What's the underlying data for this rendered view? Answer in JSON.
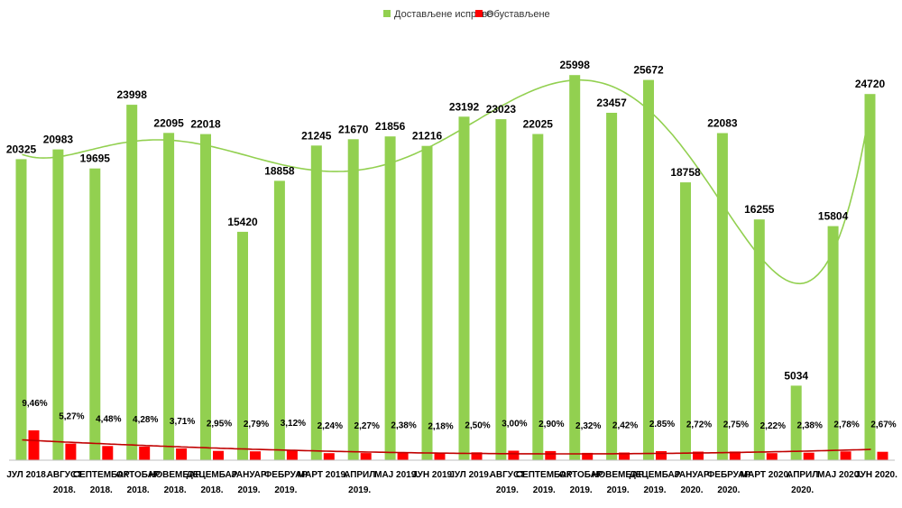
{
  "colors": {
    "delivered": "#92D050",
    "suspended": "#FF0000",
    "delivered_trend": "#92D050",
    "suspended_trend": "#C00000",
    "axis": "#BFBFBF"
  },
  "chart_data": {
    "type": "bar",
    "title": "",
    "xlabel": "",
    "ylabel": "",
    "legend_position": "top-center",
    "grid": false,
    "categories": [
      [
        "ЈУЛ 2018."
      ],
      [
        "АВГУСТ",
        "2018."
      ],
      [
        "СЕПТЕМБАР",
        "2018."
      ],
      [
        "ОКТОБАР",
        "2018."
      ],
      [
        "НОВЕМБАР",
        "2018."
      ],
      [
        "ДЕЦЕМБАР",
        "2018."
      ],
      [
        "ЈАНУАР",
        "2019."
      ],
      [
        "ФЕБРУАР",
        "2019."
      ],
      [
        "МАРТ 2019."
      ],
      [
        "АПРИЛ",
        "2019."
      ],
      [
        "МАЈ 2019."
      ],
      [
        "ЈУН 2019."
      ],
      [
        "ЈУЛ 2019."
      ],
      [
        "АВГУСТ",
        "2019."
      ],
      [
        "СЕПТЕМБАР",
        "2019."
      ],
      [
        "ОКТОБАР",
        "2019."
      ],
      [
        "НОВЕМБАР",
        "2019."
      ],
      [
        "ДЕЦЕМБАР",
        "2019."
      ],
      [
        "ЈАНУАР",
        "2020."
      ],
      [
        "ФЕБРУАР",
        "2020."
      ],
      [
        "МАРТ 2020."
      ],
      [
        "АПРИЛ",
        "2020."
      ],
      [
        "МАЈ 2020."
      ],
      [
        "ЈУН 2020."
      ]
    ],
    "ylim": [
      0,
      26500
    ],
    "series": [
      {
        "name": "Достављене исправе",
        "color": "#92D050",
        "values": [
          20325,
          20983,
          19695,
          23998,
          22095,
          22018,
          15420,
          18858,
          21245,
          21670,
          21856,
          21216,
          23192,
          23023,
          22025,
          25998,
          23457,
          25672,
          18758,
          22083,
          16255,
          5034,
          15804,
          24720
        ],
        "labels": [
          "20325",
          "20983",
          "19695",
          "23998",
          "22095",
          "22018",
          "15420",
          "18858",
          "21245",
          "21670",
          "21856",
          "21216",
          "23192",
          "23023",
          "22025",
          "25998",
          "23457",
          "25672",
          "18758",
          "22083",
          "16255",
          "5034",
          "15804",
          "24720"
        ],
        "trend": "polynomial"
      },
      {
        "name": "Обустављене",
        "color": "#FF0000",
        "values": [
          9.46,
          5.27,
          4.48,
          4.28,
          3.71,
          2.95,
          2.79,
          3.12,
          2.24,
          2.27,
          2.38,
          2.18,
          2.5,
          3.0,
          2.9,
          2.32,
          2.42,
          2.85,
          2.72,
          2.75,
          2.22,
          2.38,
          2.78,
          2.67
        ],
        "labels": [
          "9,46%",
          "5,27%",
          "4,48%",
          "4,28%",
          "3,71%",
          "2,95%",
          "2,79%",
          "3,12%",
          "2,24%",
          "2,27%",
          "2,38%",
          "2,18%",
          "2,50%",
          "3,00%",
          "2,90%",
          "2,32%",
          "2,42%",
          "2.85%",
          "2,72%",
          "2,75%",
          "2,22%",
          "2,38%",
          "2,78%",
          "2,67%"
        ],
        "trend": "polynomial"
      }
    ]
  }
}
